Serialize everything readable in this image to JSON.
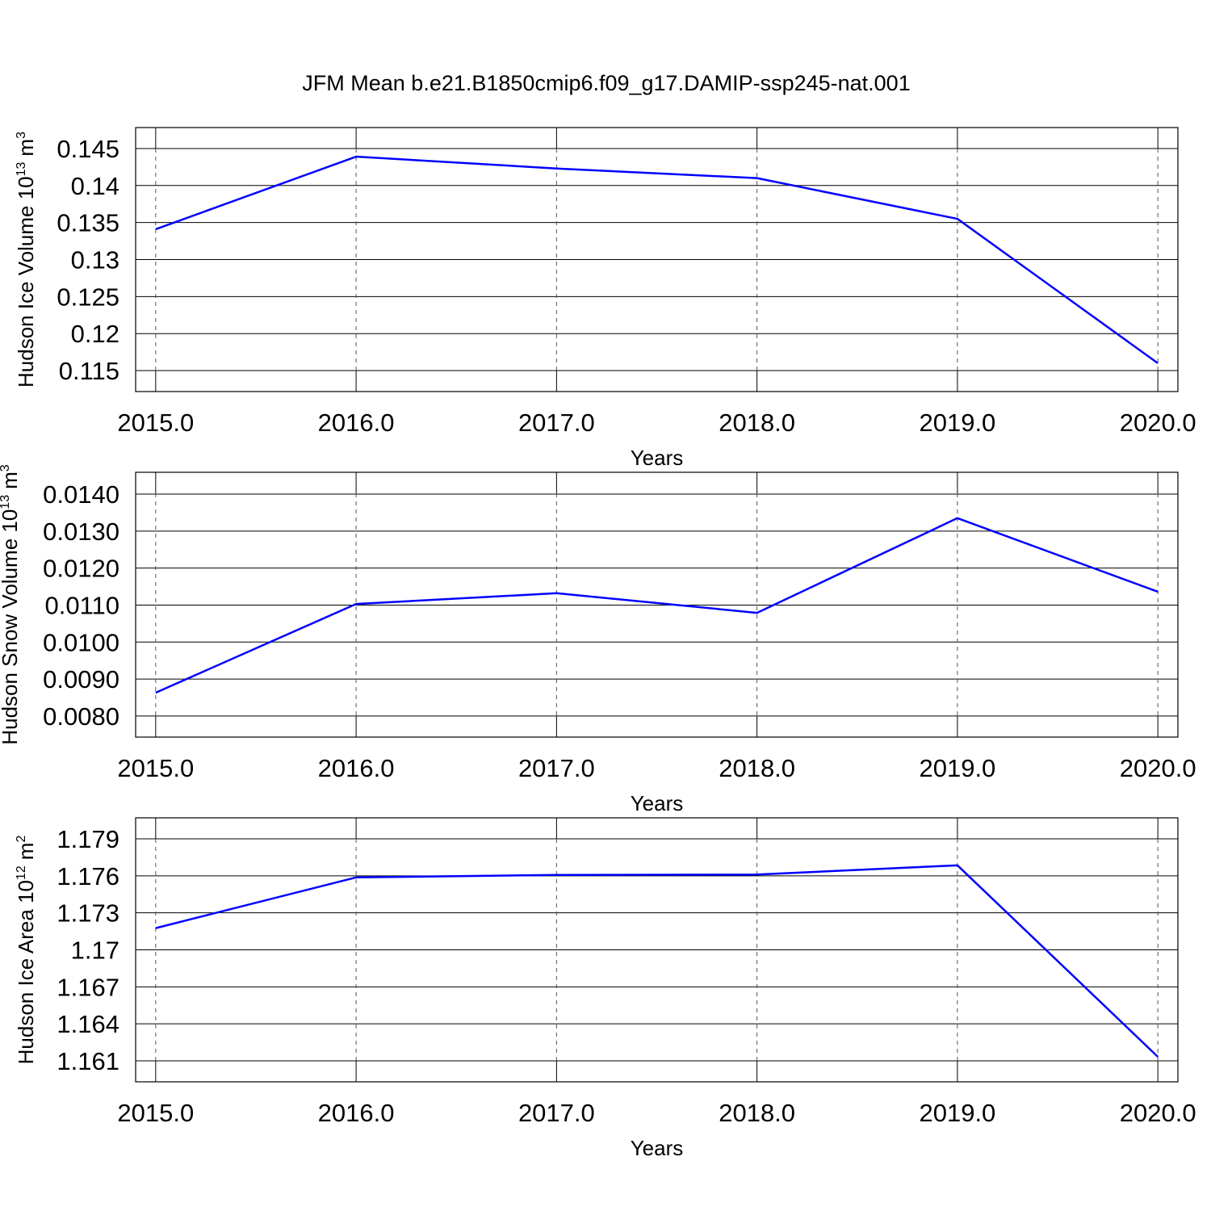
{
  "chart_data": [
    {
      "type": "line",
      "title": "JFM Mean b.e21.B1850cmip6.f09_g17.DAMIP-ssp245-nat.001",
      "ylabel": {
        "base": "Hudson Ice Volume 10",
        "exponent": "13",
        "unit": "m",
        "unit_exponent": "3"
      },
      "xlabel": "Years",
      "x": [
        2015,
        2016,
        2017,
        2018,
        2019,
        2020
      ],
      "values": [
        0.1341,
        0.1439,
        0.1423,
        0.141,
        0.1355,
        0.116
      ],
      "color": "#0000ff",
      "xlim": [
        2014.9,
        2020.1
      ],
      "xticks": [
        {
          "value": 2015,
          "label": "2015.0"
        },
        {
          "value": 2016,
          "label": "2016.0"
        },
        {
          "value": 2017,
          "label": "2017.0"
        },
        {
          "value": 2018,
          "label": "2018.0"
        },
        {
          "value": 2019,
          "label": "2019.0"
        },
        {
          "value": 2020,
          "label": "2020.0"
        }
      ],
      "ylim": [
        0.11217,
        0.14783
      ],
      "yticks": [
        0.115,
        0.12,
        0.125,
        0.13,
        0.135,
        0.14,
        0.145
      ],
      "grid": true
    },
    {
      "type": "line",
      "ylabel": {
        "base": "Hudson Snow Volume 10",
        "exponent": "13",
        "unit": "m",
        "unit_exponent": "3"
      },
      "xlabel": "Years",
      "x": [
        2015,
        2016,
        2017,
        2018,
        2019,
        2020
      ],
      "values": [
        0.00863,
        0.01103,
        0.01132,
        0.01079,
        0.01335,
        0.01136
      ],
      "color": "#0000ff",
      "xlim": [
        2014.9,
        2020.1
      ],
      "xticks": [
        {
          "value": 2015,
          "label": "2015.0"
        },
        {
          "value": 2016,
          "label": "2016.0"
        },
        {
          "value": 2017,
          "label": "2017.0"
        },
        {
          "value": 2018,
          "label": "2018.0"
        },
        {
          "value": 2019,
          "label": "2019.0"
        },
        {
          "value": 2020,
          "label": "2020.0"
        }
      ],
      "ylim": [
        0.00743,
        0.01459
      ],
      "yticks": [
        {
          "value": 0.008,
          "label": "0.0080"
        },
        {
          "value": 0.009,
          "label": "0.0090"
        },
        {
          "value": 0.01,
          "label": "0.0100"
        },
        {
          "value": 0.011,
          "label": "0.0110"
        },
        {
          "value": 0.012,
          "label": "0.0120"
        },
        {
          "value": 0.013,
          "label": "0.0130"
        },
        {
          "value": 0.014,
          "label": "0.0140"
        }
      ],
      "grid": true
    },
    {
      "type": "line",
      "ylabel": {
        "base": "Hudson Ice Area 10",
        "exponent": "12",
        "unit": "m",
        "unit_exponent": "2"
      },
      "xlabel": "Years",
      "x": [
        2015,
        2016,
        2017,
        2018,
        2019,
        2020
      ],
      "values": [
        1.17176,
        1.17587,
        1.17607,
        1.1761,
        1.17685,
        1.16133
      ],
      "color": "#0000ff",
      "xlim": [
        2014.9,
        2020.1
      ],
      "xticks": [
        {
          "value": 2015,
          "label": "2015.0"
        },
        {
          "value": 2016,
          "label": "2016.0"
        },
        {
          "value": 2017,
          "label": "2017.0"
        },
        {
          "value": 2018,
          "label": "2018.0"
        },
        {
          "value": 2019,
          "label": "2019.0"
        },
        {
          "value": 2020,
          "label": "2020.0"
        }
      ],
      "ylim": [
        1.1593,
        1.1807
      ],
      "yticks": [
        1.161,
        1.164,
        1.167,
        1.17,
        1.173,
        1.176,
        1.179
      ],
      "grid": true
    }
  ]
}
